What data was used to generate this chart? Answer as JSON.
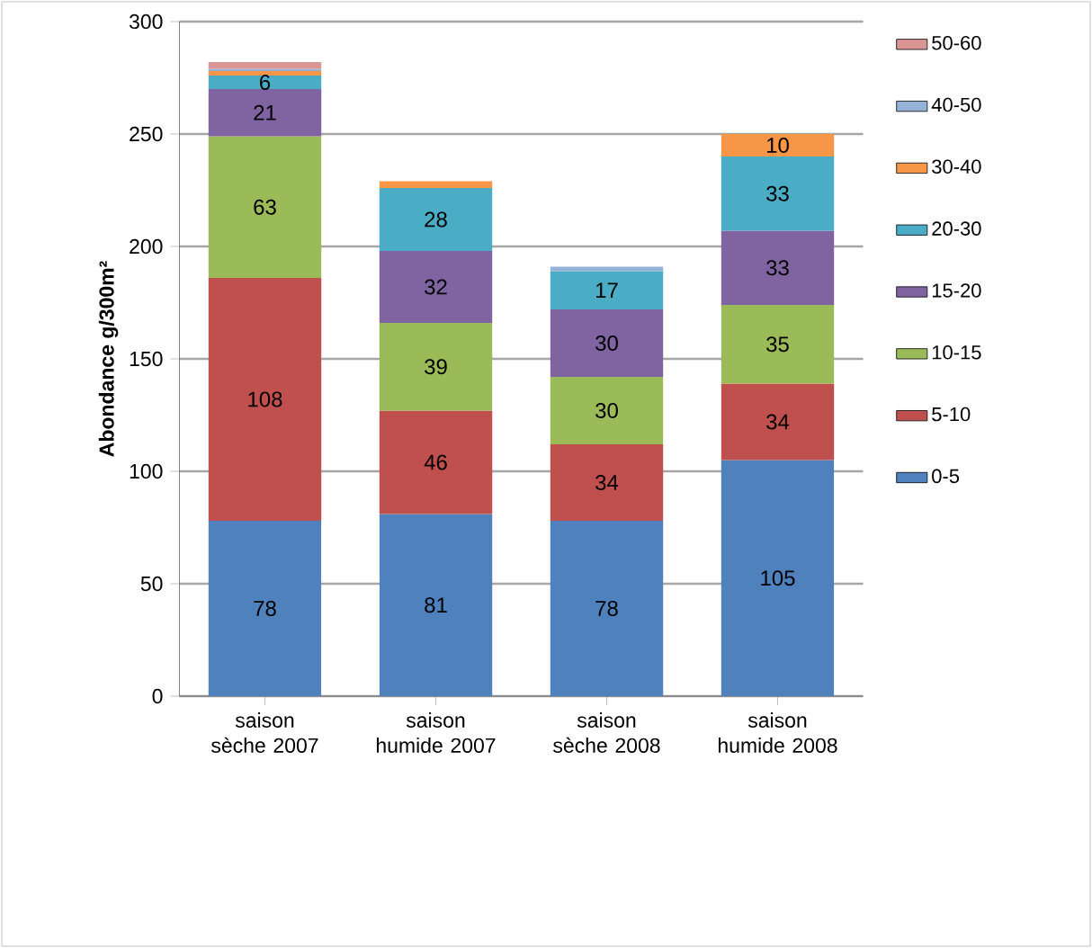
{
  "chart_data": {
    "type": "bar",
    "stacked": true,
    "ylabel": "Abondance g/300m²",
    "categories": [
      "saison sèche 2007",
      "saison humide 2007",
      "saison sèche 2008",
      "saison humide 2008"
    ],
    "ylim": [
      0,
      300
    ],
    "yticks": [
      0,
      50,
      100,
      150,
      200,
      250,
      300
    ],
    "grid": "y",
    "legend": "right",
    "series": [
      {
        "name": "0-5",
        "color": "#4f81bd",
        "values": [
          78,
          81,
          78,
          105
        ],
        "value_labels": [
          "78",
          "81",
          "78",
          "105"
        ]
      },
      {
        "name": "5-10",
        "color": "#c0504d",
        "values": [
          108,
          46,
          34,
          34
        ],
        "value_labels": [
          "108",
          "46",
          "34",
          "34"
        ]
      },
      {
        "name": "10-15",
        "color": "#9bbb59",
        "values": [
          63,
          39,
          30,
          35
        ],
        "value_labels": [
          "63",
          "39",
          "30",
          "35"
        ]
      },
      {
        "name": "15-20",
        "color": "#8064a2",
        "values": [
          21,
          32,
          30,
          33
        ],
        "value_labels": [
          "21",
          "32",
          "30",
          "33"
        ]
      },
      {
        "name": "20-30",
        "color": "#4bacc6",
        "values": [
          6,
          28,
          17,
          33
        ],
        "value_labels": [
          "6",
          "28",
          "17",
          "33"
        ]
      },
      {
        "name": "30-40",
        "color": "#f79646",
        "values": [
          2,
          3,
          null,
          10
        ],
        "value_labels": [
          null,
          null,
          null,
          "10"
        ]
      },
      {
        "name": "40-50",
        "color": "#95b3d7",
        "values": [
          1,
          null,
          2,
          null
        ],
        "value_labels": [
          null,
          null,
          null,
          null
        ]
      },
      {
        "name": "50-60",
        "color": "#d99694",
        "values": [
          3,
          null,
          null,
          null
        ],
        "value_labels": [
          null,
          null,
          null,
          null
        ]
      }
    ]
  }
}
